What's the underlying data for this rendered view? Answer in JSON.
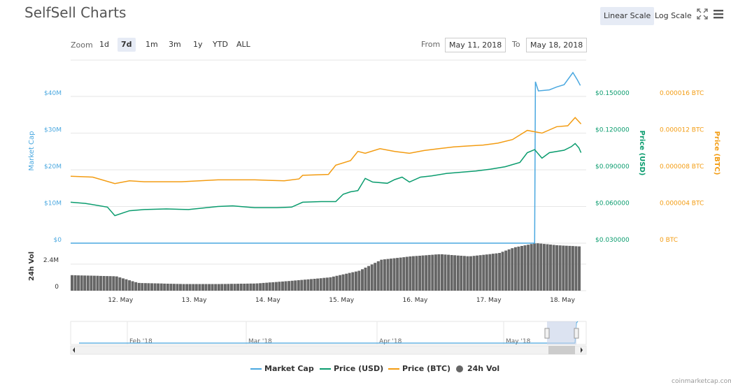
{
  "header": {
    "title": "SelfSell Charts",
    "linear_scale": "Linear Scale",
    "log_scale": "Log Scale",
    "fullscreen_icon": "expand-icon",
    "menu_icon": "hamburger-menu-icon"
  },
  "zoom": {
    "label": "Zoom",
    "buttons": [
      "1d",
      "7d",
      "1m",
      "3m",
      "1y",
      "YTD",
      "ALL"
    ],
    "active": "7d"
  },
  "range": {
    "from_label": "From",
    "from_value": "May 11, 2018",
    "to_label": "To",
    "to_value": "May 18, 2018"
  },
  "credit": "coinmarketcap.com",
  "colors": {
    "market_cap": "#4aa8e0",
    "price_usd": "#0a9c6e",
    "price_btc": "#f39c12",
    "volume": "#666666",
    "grid": "#e6e6e6",
    "navigator_mask": "#c9d4ea"
  },
  "chart_data": {
    "type": "line",
    "axes": {
      "market_cap": {
        "title": "Market Cap",
        "ticks": [
          "$0",
          "$10M",
          "$20M",
          "$30M",
          "$40M"
        ],
        "range": [
          0,
          40000000
        ]
      },
      "price_usd": {
        "title": "Price (USD)",
        "ticks": [
          "$0.030000",
          "$0.060000",
          "$0.090000",
          "$0.120000",
          "$0.150000"
        ],
        "range": [
          0.03,
          0.15
        ]
      },
      "price_btc": {
        "title": "Price (BTC)",
        "ticks": [
          "0 BTC",
          "0.000004 BTC",
          "0.000008 BTC",
          "0.000012 BTC",
          "0.000016 BTC"
        ],
        "range": [
          0,
          1.6e-05
        ]
      },
      "volume": {
        "title": "24h Vol",
        "ticks": [
          "0",
          "2.4M"
        ],
        "range": [
          0,
          2400000
        ]
      }
    },
    "x": {
      "range": [
        "May 11, 2018",
        "May 18, 2018"
      ],
      "ticks": [
        "12. May",
        "13. May",
        "14. May",
        "15. May",
        "16. May",
        "17. May",
        "18. May"
      ]
    },
    "series": [
      {
        "name": "Market Cap",
        "axis": "market_cap",
        "points": [
          [
            0,
            0
          ],
          [
            6.3,
            0
          ],
          [
            6.31,
            44000000
          ],
          [
            6.35,
            41500000
          ],
          [
            6.5,
            41800000
          ],
          [
            6.6,
            42600000
          ],
          [
            6.7,
            43200000
          ],
          [
            6.82,
            46500000
          ],
          [
            6.88,
            44500000
          ],
          [
            6.92,
            43000000
          ]
        ]
      },
      {
        "name": "Price (USD)",
        "axis": "price_usd",
        "points": [
          [
            0,
            0.0635
          ],
          [
            0.2,
            0.0625
          ],
          [
            0.5,
            0.0595
          ],
          [
            0.6,
            0.0525
          ],
          [
            0.8,
            0.0565
          ],
          [
            1.0,
            0.0575
          ],
          [
            1.3,
            0.058
          ],
          [
            1.6,
            0.0575
          ],
          [
            2.0,
            0.06
          ],
          [
            2.2,
            0.0605
          ],
          [
            2.5,
            0.059
          ],
          [
            2.8,
            0.059
          ],
          [
            3.0,
            0.0595
          ],
          [
            3.15,
            0.0635
          ],
          [
            3.4,
            0.064
          ],
          [
            3.6,
            0.064
          ],
          [
            3.7,
            0.07
          ],
          [
            3.8,
            0.072
          ],
          [
            3.9,
            0.073
          ],
          [
            4.0,
            0.083
          ],
          [
            4.1,
            0.08
          ],
          [
            4.3,
            0.079
          ],
          [
            4.4,
            0.082
          ],
          [
            4.5,
            0.084
          ],
          [
            4.6,
            0.08
          ],
          [
            4.75,
            0.084
          ],
          [
            4.9,
            0.085
          ],
          [
            5.1,
            0.087
          ],
          [
            5.3,
            0.088
          ],
          [
            5.5,
            0.089
          ],
          [
            5.7,
            0.0905
          ],
          [
            5.9,
            0.0925
          ],
          [
            6.1,
            0.096
          ],
          [
            6.2,
            0.104
          ],
          [
            6.3,
            0.1065
          ],
          [
            6.4,
            0.0995
          ],
          [
            6.5,
            0.104
          ],
          [
            6.7,
            0.106
          ],
          [
            6.8,
            0.109
          ],
          [
            6.85,
            0.1115
          ],
          [
            6.9,
            0.108
          ],
          [
            6.93,
            0.104
          ]
        ]
      },
      {
        "name": "Price (BTC)",
        "axis": "price_btc",
        "points": [
          [
            0,
            7.3e-06
          ],
          [
            0.3,
            7.2e-06
          ],
          [
            0.6,
            6.5e-06
          ],
          [
            0.8,
            6.8e-06
          ],
          [
            1.0,
            6.7e-06
          ],
          [
            1.5,
            6.7e-06
          ],
          [
            2.0,
            6.9e-06
          ],
          [
            2.5,
            6.9e-06
          ],
          [
            2.9,
            6.8e-06
          ],
          [
            3.1,
            7e-06
          ],
          [
            3.15,
            7.4e-06
          ],
          [
            3.5,
            7.5e-06
          ],
          [
            3.6,
            8.5e-06
          ],
          [
            3.8,
            9e-06
          ],
          [
            3.9,
            1e-05
          ],
          [
            4.0,
            9.8e-06
          ],
          [
            4.2,
            1.03e-05
          ],
          [
            4.4,
            1e-05
          ],
          [
            4.6,
            9.8e-06
          ],
          [
            4.8,
            1.01e-05
          ],
          [
            5.0,
            1.03e-05
          ],
          [
            5.2,
            1.05e-05
          ],
          [
            5.4,
            1.06e-05
          ],
          [
            5.6,
            1.07e-05
          ],
          [
            5.8,
            1.09e-05
          ],
          [
            6.0,
            1.13e-05
          ],
          [
            6.2,
            1.23e-05
          ],
          [
            6.4,
            1.2e-05
          ],
          [
            6.6,
            1.27e-05
          ],
          [
            6.75,
            1.28e-05
          ],
          [
            6.85,
            1.37e-05
          ],
          [
            6.93,
            1.3e-05
          ]
        ]
      },
      {
        "name": "24h Vol",
        "axis": "volume",
        "type": "column",
        "points": [
          [
            0,
            1400000
          ],
          [
            0.6,
            1300000
          ],
          [
            0.9,
            700000
          ],
          [
            1.5,
            600000
          ],
          [
            2.0,
            600000
          ],
          [
            2.5,
            650000
          ],
          [
            3.0,
            900000
          ],
          [
            3.5,
            1200000
          ],
          [
            3.9,
            1800000
          ],
          [
            4.2,
            2800000
          ],
          [
            4.6,
            3100000
          ],
          [
            5.0,
            3300000
          ],
          [
            5.4,
            3100000
          ],
          [
            5.8,
            3400000
          ],
          [
            6.0,
            3900000
          ],
          [
            6.3,
            4300000
          ],
          [
            6.6,
            4100000
          ],
          [
            6.9,
            4000000
          ]
        ]
      }
    ],
    "navigator": {
      "ticks": [
        "Feb '18",
        "Mar '18",
        "Apr '18",
        "May '18"
      ],
      "selected_range": [
        "May 11, 2018",
        "May 18, 2018"
      ]
    },
    "legend": [
      "Market Cap",
      "Price (USD)",
      "Price (BTC)",
      "24h Vol"
    ],
    "legend_position": "bottom-center",
    "grid": true
  }
}
